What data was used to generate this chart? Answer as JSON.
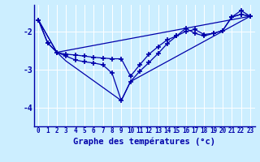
{
  "xlabel": "Graphe des températures (°c)",
  "background_color": "#cceeff",
  "line_color": "#0000aa",
  "xlim": [
    -0.5,
    23.5
  ],
  "ylim": [
    -4.5,
    -1.3
  ],
  "yticks": [
    -4,
    -3,
    -2
  ],
  "xticks": [
    0,
    1,
    2,
    3,
    4,
    5,
    6,
    7,
    8,
    9,
    10,
    11,
    12,
    13,
    14,
    15,
    16,
    17,
    18,
    19,
    20,
    21,
    22,
    23
  ],
  "series1_x": [
    0,
    1,
    2,
    3,
    4,
    5,
    6,
    7,
    8,
    9,
    10,
    11,
    12,
    13,
    14,
    15,
    16,
    17,
    18,
    19,
    20,
    21,
    22,
    23
  ],
  "series1_y": [
    -1.7,
    -2.3,
    -2.55,
    -2.6,
    -2.62,
    -2.65,
    -2.68,
    -2.7,
    -2.72,
    -2.72,
    -3.18,
    -2.88,
    -2.6,
    -2.4,
    -2.22,
    -2.12,
    -2.0,
    -1.95,
    -2.08,
    -2.05,
    -1.98,
    -1.62,
    -1.55,
    -1.6
  ],
  "series2_x": [
    0,
    1,
    2,
    3,
    4,
    5,
    6,
    7,
    8,
    9,
    10,
    11,
    12,
    13,
    14,
    15,
    16,
    17,
    18,
    19,
    20,
    21,
    22,
    23
  ],
  "series2_y": [
    -1.7,
    -2.3,
    -2.55,
    -2.65,
    -2.75,
    -2.8,
    -2.83,
    -2.88,
    -3.1,
    -3.82,
    -3.32,
    -3.05,
    -2.82,
    -2.58,
    -2.32,
    -2.12,
    -1.92,
    -2.05,
    -2.12,
    -2.05,
    -1.98,
    -1.62,
    -1.55,
    -1.6
  ],
  "series3_x": [
    0,
    2,
    23
  ],
  "series3_y": [
    -1.7,
    -2.55,
    -1.6
  ],
  "series4_x": [
    0,
    2,
    3,
    9,
    10,
    23
  ],
  "series4_y": [
    -1.7,
    -2.55,
    -2.78,
    -3.82,
    -3.32,
    -1.6
  ],
  "series5_x": [
    21,
    22,
    23
  ],
  "series5_y": [
    -1.62,
    -1.45,
    -1.6
  ]
}
